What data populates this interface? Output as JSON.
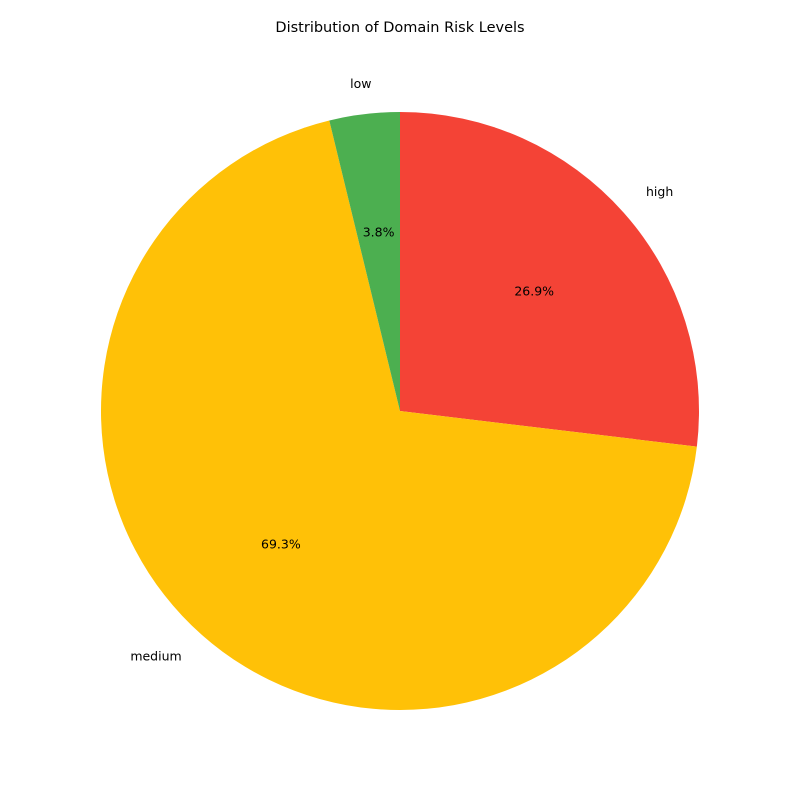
{
  "chart_data": {
    "type": "pie",
    "title": "Distribution of Domain Risk Levels",
    "categories": [
      "high",
      "medium",
      "low"
    ],
    "values": [
      26.9,
      69.3,
      3.8
    ],
    "percent_labels": [
      "26.9%",
      "69.3%",
      "3.8%"
    ],
    "colors": [
      "#f44336",
      "#ffc107",
      "#4caf50"
    ],
    "start_angle_deg": 90,
    "direction": "clockwise",
    "legend": "none"
  }
}
